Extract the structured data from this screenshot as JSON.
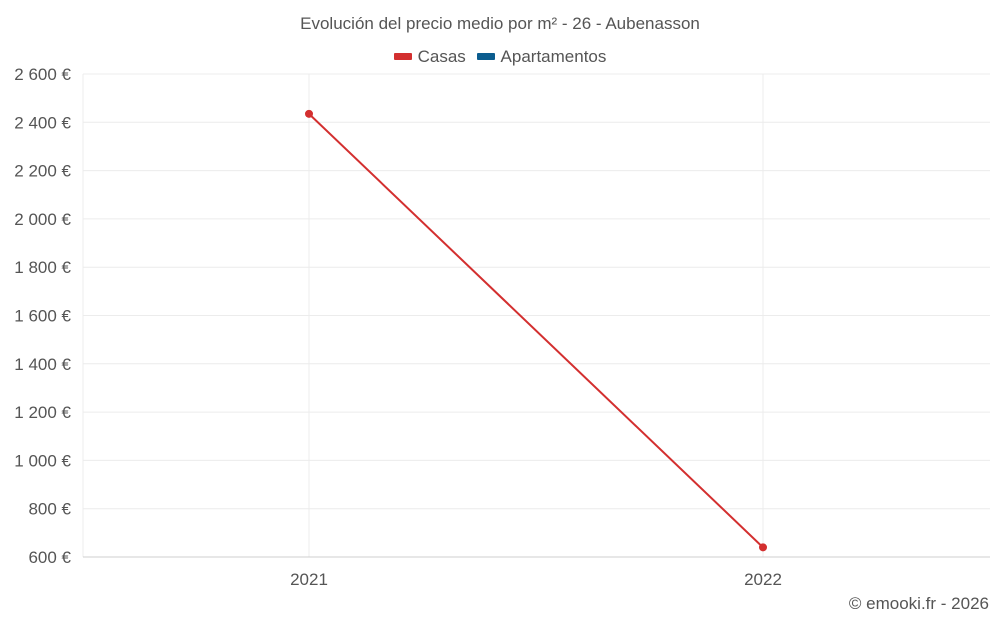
{
  "chart_data": {
    "type": "line",
    "title": "Evolución del precio medio por m² - 26 - Aubenasson",
    "categories": [
      "2021",
      "2022"
    ],
    "series": [
      {
        "name": "Casas",
        "color": "#d32f2f",
        "values": [
          2435,
          640
        ]
      },
      {
        "name": "Apartamentos",
        "color": "#0b5d8f",
        "values": [
          null,
          null
        ]
      }
    ],
    "ylim": [
      600,
      2600
    ],
    "yticks": [
      600,
      800,
      1000,
      1200,
      1400,
      1600,
      1800,
      2000,
      2200,
      2400,
      2600
    ],
    "ytick_labels": [
      "600 €",
      "800 €",
      "1 000 €",
      "1 200 €",
      "1 400 €",
      "1 600 €",
      "1 800 €",
      "2 000 €",
      "2 200 €",
      "2 400 €",
      "2 600 €"
    ],
    "xlabel": "",
    "ylabel": "",
    "grid": true,
    "legend_position": "top-center"
  },
  "credit": "© emooki.fr - 2026"
}
